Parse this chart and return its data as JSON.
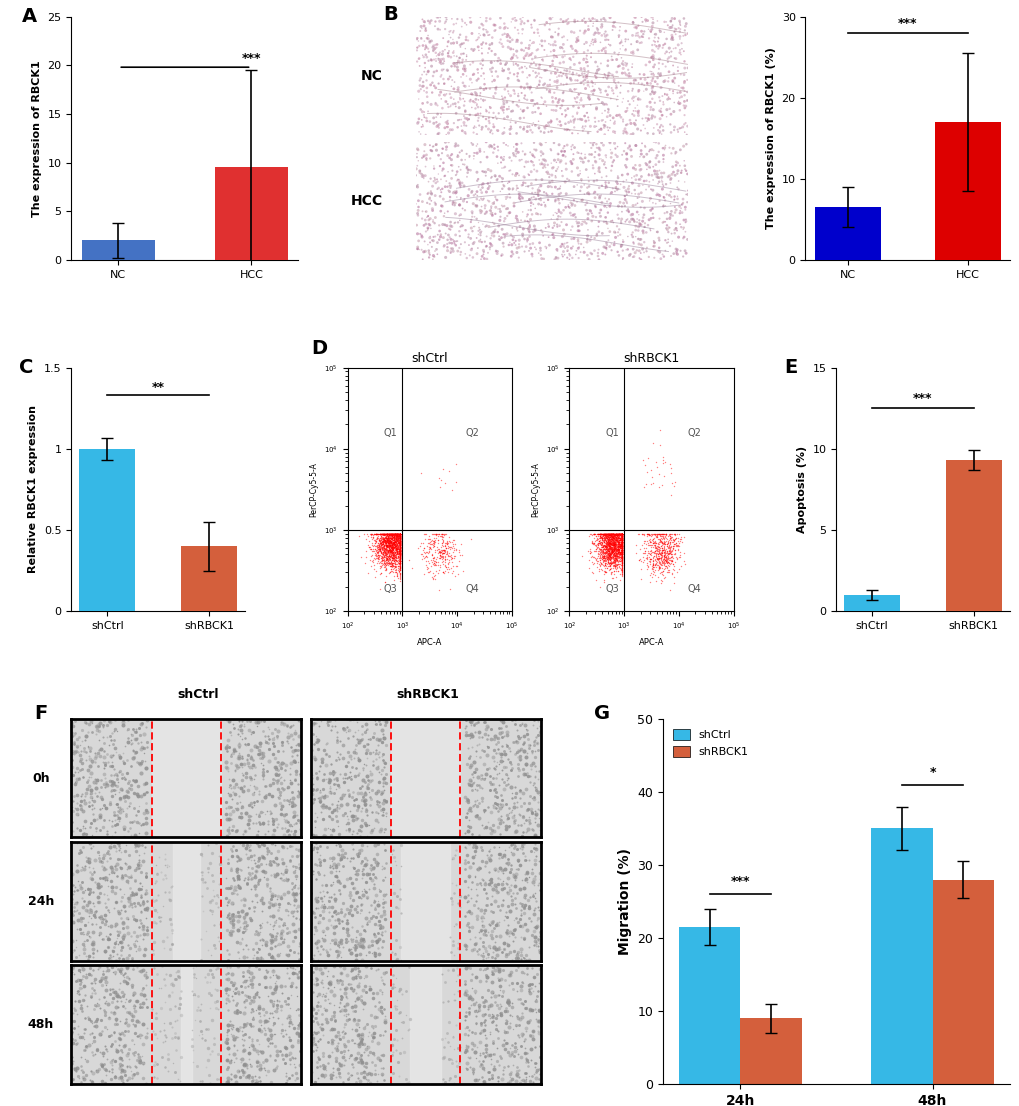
{
  "panel_A": {
    "categories": [
      "NC",
      "HCC"
    ],
    "values": [
      2.0,
      9.5
    ],
    "errors": [
      1.8,
      10.0
    ],
    "colors": [
      "#4472c4",
      "#e03030"
    ],
    "ylabel": "The expression of RBCK1",
    "ylim": [
      0,
      25
    ],
    "yticks": [
      0,
      5,
      10,
      15,
      20,
      25
    ],
    "sig_text": "***",
    "label": "A"
  },
  "panel_B_bar": {
    "categories": [
      "NC",
      "HCC"
    ],
    "values": [
      6.5,
      17.0
    ],
    "errors": [
      2.5,
      8.5
    ],
    "colors": [
      "#0000cc",
      "#dd0000"
    ],
    "ylabel": "The expression of RBCK1 (%)",
    "ylim": [
      0,
      30
    ],
    "yticks": [
      0,
      10,
      20,
      30
    ],
    "sig_text": "***",
    "label": "B"
  },
  "panel_C": {
    "categories": [
      "shCtrl",
      "shRBCK1"
    ],
    "values": [
      1.0,
      0.4
    ],
    "errors": [
      0.07,
      0.15
    ],
    "colors": [
      "#36b8e6",
      "#d45f3c"
    ],
    "ylabel": "Relative RBCK1 expression",
    "ylim": [
      0,
      1.5
    ],
    "yticks": [
      0.0,
      0.5,
      1.0,
      1.5
    ],
    "sig_text": "**",
    "label": "C"
  },
  "panel_E": {
    "categories": [
      "shCtrl",
      "shRBCK1"
    ],
    "values": [
      1.0,
      9.3
    ],
    "errors": [
      0.3,
      0.6
    ],
    "colors": [
      "#36b8e6",
      "#d45f3c"
    ],
    "ylabel": "Apoptosis (%)",
    "ylim": [
      0,
      15
    ],
    "yticks": [
      0,
      5,
      10,
      15
    ],
    "sig_text": "***",
    "label": "E"
  },
  "panel_G": {
    "groups": [
      "24h",
      "48h"
    ],
    "shCtrl_values": [
      21.5,
      35.0
    ],
    "shRBCK1_values": [
      9.0,
      28.0
    ],
    "shCtrl_errors": [
      2.5,
      3.0
    ],
    "shRBCK1_errors": [
      2.0,
      2.5
    ],
    "colors": [
      "#36b8e6",
      "#d45f3c"
    ],
    "ylabel": "Migration (%)",
    "ylim": [
      0,
      50
    ],
    "yticks": [
      0,
      10,
      20,
      30,
      40,
      50
    ],
    "sig_24h": "***",
    "sig_48h": "*",
    "label": "G",
    "legend": [
      "shCtrl",
      "shRBCK1"
    ]
  },
  "flow_D": {
    "label": "D",
    "titles": [
      "shCtrl",
      "shRBCK1"
    ]
  },
  "scratch_F": {
    "label": "F",
    "row_labels": [
      "0h",
      "24h",
      "48h"
    ],
    "col_labels": [
      "shCtrl",
      "shRBCK1"
    ]
  }
}
